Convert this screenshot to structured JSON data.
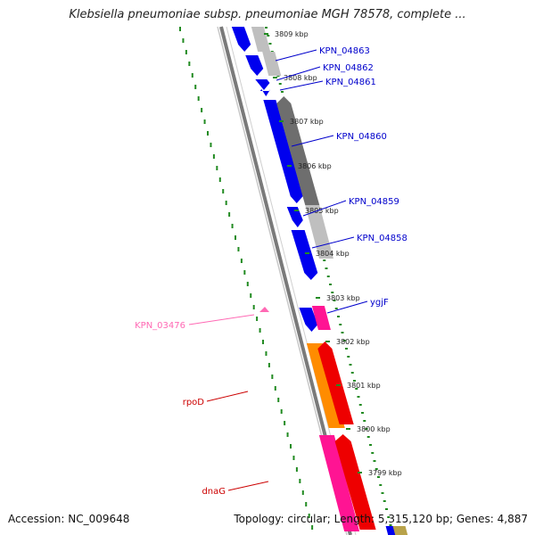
{
  "title": "Klebsiella pneumoniae subsp. pneumoniae MGH 78578, complete ...",
  "footer": {
    "accession": "Accession: NC_009648",
    "stats": "Topology: circular; Length: 5,315,120 bp; Genes: 4,887"
  },
  "colors": {
    "forward_cds": "#0000ee",
    "reverse_cds_light": "#bfbfbf",
    "reverse_cds_dark": "#6e6e6e",
    "pink_gene": "#ff1493",
    "red_gene": "#ee0000",
    "orange_gene": "#ff8c00",
    "tick_green": "#228b22",
    "label_blue": "#0000cc",
    "label_red": "#cc0000",
    "label_pink": "#ff69b4"
  },
  "kbp_ticks": [
    "3809 kbp",
    "3808 kbp",
    "3807 kbp",
    "3806 kbp",
    "3805 kbp",
    "3804 kbp",
    "3803 kbp",
    "3802 kbp",
    "3801 kbp",
    "3800 kbp",
    "3799 kbp"
  ],
  "gene_labels": [
    "KPN_04863",
    "KPN_04862",
    "KPN_04861",
    "KPN_04860",
    "KPN_04859",
    "KPN_04858",
    "ygjF",
    "KPN_03476",
    "rpoD",
    "dnaG"
  ]
}
